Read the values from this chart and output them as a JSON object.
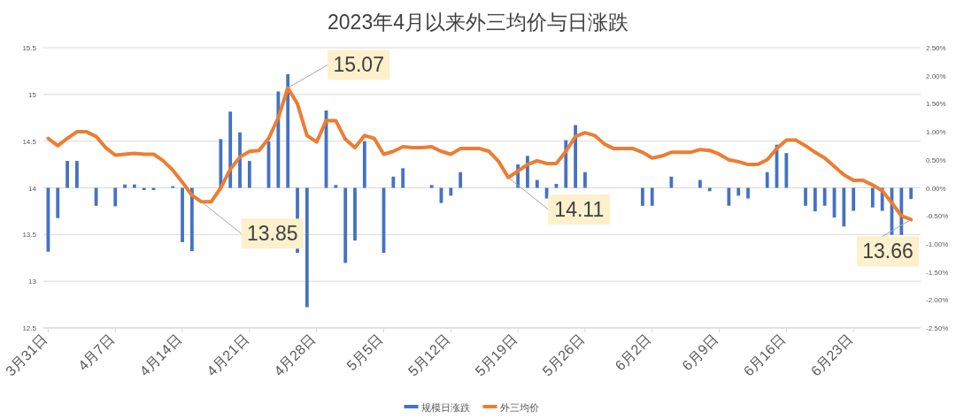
{
  "chart_data": {
    "type": "bar",
    "title": "2023年4月以来外三均价与日涨跌",
    "x": [
      "2023-03-31",
      "2023-04-01",
      "2023-04-02",
      "2023-04-03",
      "2023-04-04",
      "2023-04-05",
      "2023-04-06",
      "2023-04-07",
      "2023-04-08",
      "2023-04-09",
      "2023-04-10",
      "2023-04-11",
      "2023-04-12",
      "2023-04-13",
      "2023-04-14",
      "2023-04-15",
      "2023-04-16",
      "2023-04-17",
      "2023-04-18",
      "2023-04-19",
      "2023-04-20",
      "2023-04-21",
      "2023-04-22",
      "2023-04-23",
      "2023-04-24",
      "2023-04-25",
      "2023-04-26",
      "2023-04-27",
      "2023-04-28",
      "2023-04-29",
      "2023-04-30",
      "2023-05-01",
      "2023-05-02",
      "2023-05-03",
      "2023-05-04",
      "2023-05-05",
      "2023-05-06",
      "2023-05-07",
      "2023-05-08",
      "2023-05-09",
      "2023-05-10",
      "2023-05-11",
      "2023-05-12",
      "2023-05-13",
      "2023-05-14",
      "2023-05-15",
      "2023-05-16",
      "2023-05-17",
      "2023-05-18",
      "2023-05-19",
      "2023-05-20",
      "2023-05-21",
      "2023-05-22",
      "2023-05-23",
      "2023-05-24",
      "2023-05-25",
      "2023-05-26",
      "2023-05-27",
      "2023-05-28",
      "2023-05-29",
      "2023-05-30",
      "2023-05-31",
      "2023-06-01",
      "2023-06-02",
      "2023-06-03",
      "2023-06-04",
      "2023-06-05",
      "2023-06-06",
      "2023-06-07",
      "2023-06-08",
      "2023-06-09",
      "2023-06-10",
      "2023-06-11",
      "2023-06-12",
      "2023-06-13",
      "2023-06-14",
      "2023-06-15",
      "2023-06-16",
      "2023-06-17",
      "2023-06-18",
      "2023-06-19",
      "2023-06-20",
      "2023-06-21",
      "2023-06-22",
      "2023-06-23",
      "2023-06-24",
      "2023-06-25",
      "2023-06-26",
      "2023-06-27",
      "2023-06-28",
      "2023-06-29"
    ],
    "series": [
      {
        "name": "规模日涨跌",
        "axis": "y2",
        "color": "#4472c4",
        "values": [
          -1.14,
          -0.54,
          0.48,
          0.48,
          0,
          -0.32,
          0,
          -0.33,
          0.06,
          0.06,
          -0.04,
          -0.04,
          0,
          0.03,
          -0.97,
          -1.13,
          null,
          null,
          0.87,
          1.36,
          0.99,
          0.48,
          null,
          0.83,
          1.72,
          2.03,
          -1.16,
          -2.13,
          null,
          1.38,
          0.05,
          -1.34,
          -0.94,
          0.83,
          null,
          -1.16,
          0.2,
          0.35,
          null,
          0,
          0.05,
          -0.27,
          -0.14,
          0.28,
          0,
          0,
          null,
          null,
          null,
          0.42,
          0.57,
          0.14,
          -0.19,
          0.07,
          0.85,
          1.12,
          0.28,
          null,
          null,
          null,
          null,
          null,
          -0.32,
          -0.32,
          null,
          0.2,
          null,
          null,
          0.14,
          -0.06,
          0,
          -0.32,
          -0.14,
          -0.19,
          0,
          0.28,
          0.77,
          0.62,
          null,
          -0.32,
          -0.42,
          -0.32,
          -0.53,
          -0.69,
          -0.41,
          0,
          -0.35,
          -0.41,
          -0.84,
          -0.84,
          -0.2
        ]
      },
      {
        "name": "外三均价",
        "type": "line",
        "axis": "y",
        "color": "#ed7d31",
        "values": [
          14.53,
          14.45,
          14.53,
          14.6,
          14.6,
          14.55,
          14.43,
          14.35,
          14.36,
          14.37,
          14.36,
          14.36,
          14.29,
          14.19,
          14.06,
          13.92,
          13.85,
          13.85,
          14.0,
          14.2,
          14.33,
          14.39,
          14.4,
          14.53,
          14.75,
          15.07,
          14.9,
          14.56,
          14.49,
          14.72,
          14.72,
          14.52,
          14.43,
          14.56,
          14.53,
          14.36,
          14.39,
          14.44,
          14.43,
          14.43,
          14.44,
          14.39,
          14.36,
          14.42,
          14.42,
          14.42,
          14.39,
          14.28,
          14.11,
          14.18,
          14.25,
          14.29,
          14.26,
          14.26,
          14.39,
          14.55,
          14.59,
          14.56,
          14.47,
          14.42,
          14.42,
          14.42,
          14.38,
          14.32,
          14.34,
          14.38,
          14.38,
          14.38,
          14.41,
          14.4,
          14.36,
          14.3,
          14.28,
          14.25,
          14.25,
          14.3,
          14.42,
          14.51,
          14.51,
          14.45,
          14.38,
          14.32,
          14.23,
          14.14,
          14.08,
          14.08,
          14.03,
          13.97,
          13.84,
          13.7,
          13.66
        ],
        "value_labels": [
          null,
          null,
          null,
          null,
          null,
          null,
          null,
          null,
          null,
          null,
          null,
          null,
          null,
          null,
          null,
          null,
          "13.85",
          null,
          null,
          null,
          null,
          null,
          null,
          null,
          null,
          "15.07",
          null,
          null,
          null,
          null,
          null,
          null,
          null,
          null,
          null,
          null,
          null,
          null,
          null,
          null,
          null,
          null,
          null,
          null,
          null,
          null,
          null,
          null,
          "14.11",
          null,
          null,
          null,
          null,
          null,
          null,
          null,
          null,
          null,
          null,
          null,
          null,
          null,
          null,
          null,
          null,
          null,
          null,
          null,
          null,
          null,
          null,
          null,
          null,
          null,
          null,
          null,
          null,
          null,
          null,
          null,
          null,
          null,
          null,
          null,
          null,
          null,
          null,
          null,
          null,
          null,
          "13.66"
        ]
      }
    ],
    "xlim": [
      "2023-03-30T12:00",
      "2023-06-30T00:00"
    ],
    "xticks": [
      {
        "value": "2023-03-31",
        "label": "3月31日"
      },
      {
        "value": "2023-04-07",
        "label": "4月7日"
      },
      {
        "value": "2023-04-14",
        "label": "4月14日"
      },
      {
        "value": "2023-04-21",
        "label": "4月21日"
      },
      {
        "value": "2023-04-28",
        "label": "4月28日"
      },
      {
        "value": "2023-05-05",
        "label": "5月5日"
      },
      {
        "value": "2023-05-12",
        "label": "5月12日"
      },
      {
        "value": "2023-05-19",
        "label": "5月19日"
      },
      {
        "value": "2023-05-26",
        "label": "5月26日"
      },
      {
        "value": "2023-06-02",
        "label": "6月2日"
      },
      {
        "value": "2023-06-09",
        "label": "6月9日"
      },
      {
        "value": "2023-06-16",
        "label": "6月16日"
      },
      {
        "value": "2023-06-23",
        "label": "6月23日"
      }
    ],
    "ylim": [
      12.5,
      15.5
    ],
    "yticks": [
      12.5,
      13,
      13.5,
      14,
      14.5,
      15,
      15.5
    ],
    "y2lim": [
      -2.5,
      2.5
    ],
    "y2ticks": [
      {
        "value": -2.5,
        "label": "-2.50%"
      },
      {
        "value": -2,
        "label": "-2.00%"
      },
      {
        "value": -1.5,
        "label": "-1.50%"
      },
      {
        "value": -1,
        "label": "-1.00%"
      },
      {
        "value": -0.5,
        "label": "-0.50%"
      },
      {
        "value": 0,
        "label": "0.00%"
      },
      {
        "value": 0.5,
        "label": "0.50%"
      },
      {
        "value": 1,
        "label": "1.00%"
      },
      {
        "value": 1.5,
        "label": "1.50%"
      },
      {
        "value": 2,
        "label": "2.00%"
      },
      {
        "value": 2.5,
        "label": "2.50%"
      }
    ],
    "grid": "y",
    "legend": "bottom"
  }
}
